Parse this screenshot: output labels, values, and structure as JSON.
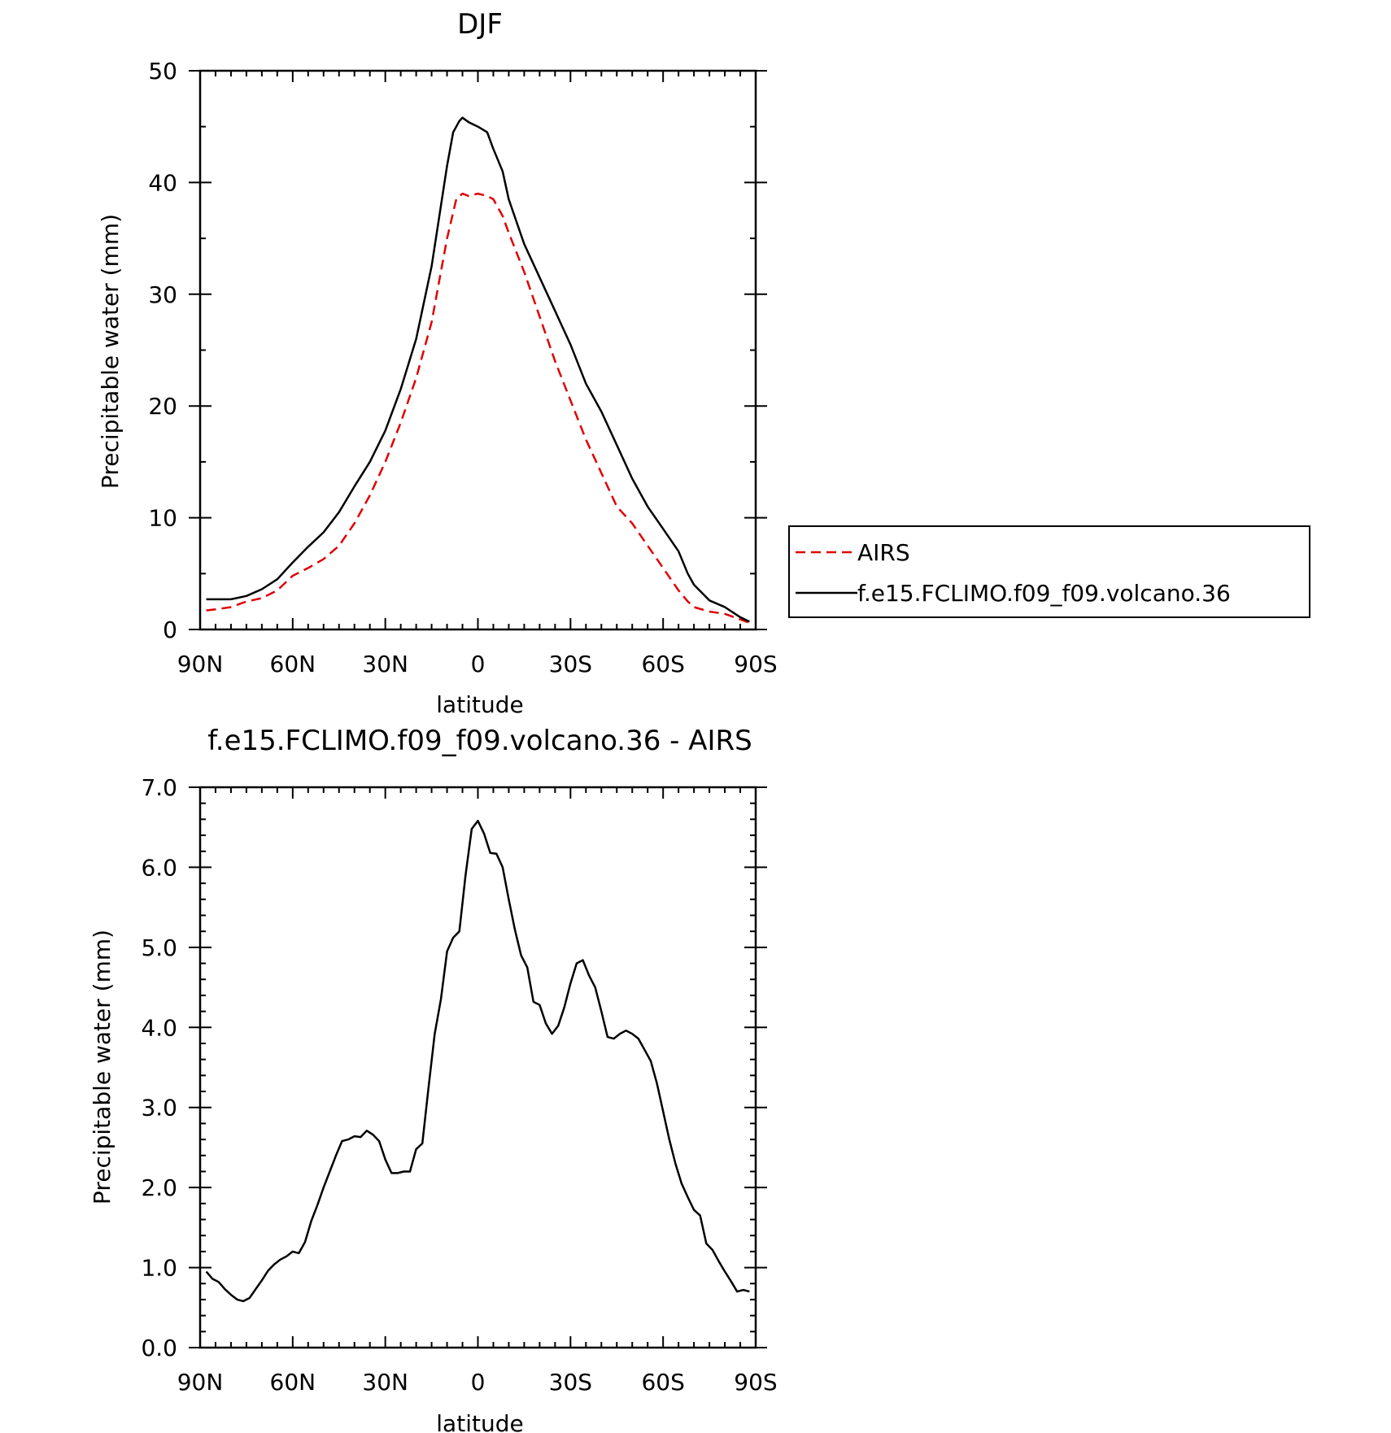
{
  "chart_data": [
    {
      "type": "line",
      "title": "DJF",
      "xlabel": "latitude",
      "ylabel": "Precipitable water (mm)",
      "xlim": [
        -90,
        90
      ],
      "ylim": [
        0,
        50
      ],
      "x_ticks": [
        -90,
        -60,
        -30,
        0,
        30,
        60,
        90
      ],
      "x_tick_labels": [
        "90N",
        "60N",
        "30N",
        "0",
        "30S",
        "60S",
        "90S"
      ],
      "y_ticks": [
        0,
        10,
        20,
        30,
        40,
        50
      ],
      "y_tick_labels": [
        "0",
        "10",
        "20",
        "30",
        "40",
        "50"
      ],
      "legend_position": "right",
      "series": [
        {
          "name": "AIRS",
          "color": "#e00000",
          "dash": "dashed",
          "x": [
            -88,
            -85,
            -80,
            -75,
            -70,
            -65,
            -60,
            -55,
            -50,
            -45,
            -40,
            -35,
            -30,
            -25,
            -20,
            -15,
            -10,
            -7,
            -5,
            -3,
            0,
            3,
            5,
            8,
            10,
            15,
            20,
            25,
            30,
            35,
            40,
            45,
            50,
            55,
            60,
            65,
            68,
            70,
            75,
            80,
            85,
            88
          ],
          "y": [
            1.7,
            1.8,
            2.0,
            2.5,
            2.8,
            3.5,
            4.8,
            5.5,
            6.3,
            7.5,
            9.5,
            12.0,
            15.0,
            18.5,
            22.5,
            27.5,
            35.0,
            38.5,
            39.0,
            38.8,
            39.0,
            38.8,
            38.5,
            37.0,
            35.5,
            32.0,
            28.0,
            24.0,
            20.5,
            17.0,
            14.0,
            11.0,
            9.5,
            7.5,
            5.5,
            3.5,
            2.5,
            2.0,
            1.6,
            1.4,
            0.9,
            0.6
          ]
        },
        {
          "name": "f.e15.FCLIMO.f09_f09.volcano.36",
          "color": "#000000",
          "dash": "solid",
          "x": [
            -88,
            -85,
            -80,
            -75,
            -70,
            -65,
            -60,
            -55,
            -50,
            -45,
            -40,
            -35,
            -30,
            -25,
            -20,
            -15,
            -10,
            -8,
            -6,
            -5,
            -3,
            0,
            3,
            5,
            8,
            10,
            15,
            20,
            25,
            30,
            35,
            40,
            45,
            50,
            55,
            60,
            65,
            68,
            70,
            75,
            80,
            85,
            88
          ],
          "y": [
            2.7,
            2.7,
            2.7,
            3.0,
            3.6,
            4.5,
            6.0,
            7.4,
            8.7,
            10.5,
            12.8,
            15.0,
            17.8,
            21.5,
            26.0,
            32.5,
            41.5,
            44.5,
            45.5,
            45.8,
            45.4,
            45.0,
            44.5,
            43.0,
            41.0,
            38.5,
            34.5,
            31.5,
            28.5,
            25.5,
            22.0,
            19.5,
            16.5,
            13.5,
            11.0,
            9.0,
            7.0,
            5.0,
            4.0,
            2.6,
            2.0,
            1.1,
            0.7
          ]
        }
      ]
    },
    {
      "type": "line",
      "title": "f.e15.FCLIMO.f09_f09.volcano.36 - AIRS",
      "xlabel": "latitude",
      "ylabel": "Precipitable water (mm)",
      "xlim": [
        -90,
        90
      ],
      "ylim": [
        0,
        7
      ],
      "x_ticks": [
        -90,
        -60,
        -30,
        0,
        30,
        60,
        90
      ],
      "x_tick_labels": [
        "90N",
        "60N",
        "30N",
        "0",
        "30S",
        "60S",
        "90S"
      ],
      "y_ticks": [
        0,
        1,
        2,
        3,
        4,
        5,
        6,
        7
      ],
      "y_tick_labels": [
        "0.0",
        "1.0",
        "2.0",
        "3.0",
        "4.0",
        "5.0",
        "6.0",
        "7.0"
      ],
      "series": [
        {
          "color": "#000000",
          "dash": "solid",
          "x": [
            -88,
            -86,
            -84,
            -82,
            -80,
            -78,
            -76,
            -74,
            -72,
            -70,
            -68,
            -66,
            -64,
            -62,
            -60,
            -58,
            -56,
            -54,
            -52,
            -50,
            -48,
            -46,
            -44,
            -42,
            -40,
            -38,
            -36,
            -34,
            -32,
            -30,
            -28,
            -26,
            -24,
            -22,
            -20,
            -18,
            -16,
            -14,
            -12,
            -10,
            -8,
            -6,
            -4,
            -2,
            0,
            2,
            4,
            6,
            8,
            10,
            12,
            14,
            16,
            18,
            20,
            22,
            24,
            26,
            28,
            30,
            32,
            34,
            36,
            38,
            40,
            42,
            44,
            46,
            48,
            50,
            52,
            54,
            56,
            58,
            60,
            62,
            64,
            66,
            68,
            70,
            72,
            74,
            76,
            78,
            80,
            82,
            84,
            86,
            88
          ],
          "y": [
            0.95,
            0.86,
            0.82,
            0.73,
            0.66,
            0.6,
            0.58,
            0.62,
            0.73,
            0.84,
            0.96,
            1.04,
            1.1,
            1.14,
            1.2,
            1.18,
            1.32,
            1.58,
            1.78,
            2.0,
            2.2,
            2.4,
            2.58,
            2.6,
            2.64,
            2.63,
            2.71,
            2.66,
            2.58,
            2.35,
            2.18,
            2.18,
            2.2,
            2.2,
            2.48,
            2.55,
            3.25,
            3.92,
            4.35,
            4.95,
            5.12,
            5.2,
            5.9,
            6.48,
            6.58,
            6.42,
            6.18,
            6.17,
            6.0,
            5.6,
            5.22,
            4.9,
            4.75,
            4.32,
            4.28,
            4.05,
            3.92,
            4.02,
            4.25,
            4.55,
            4.8,
            4.84,
            4.65,
            4.5,
            4.2,
            3.88,
            3.86,
            3.92,
            3.96,
            3.92,
            3.86,
            3.72,
            3.58,
            3.3,
            2.95,
            2.6,
            2.3,
            2.05,
            1.88,
            1.72,
            1.65,
            1.3,
            1.22,
            1.08,
            0.95,
            0.83,
            0.7,
            0.72,
            0.7
          ]
        }
      ]
    }
  ]
}
